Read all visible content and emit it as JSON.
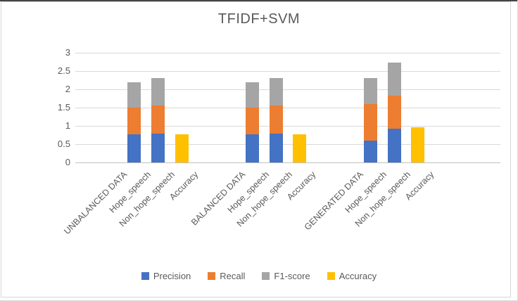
{
  "chart_data": {
    "type": "bar",
    "variant": "stacked-column",
    "title": "TFIDF+SVM",
    "categories": [
      "UNBALANCED DATA",
      "Hope_speech",
      "Non_hope_speech",
      "Accuracy",
      "BALANCED DATA",
      "Hope_speech",
      "Non_hope_speech",
      "Accuracy",
      "GENERATED DATA",
      "Hope_speech",
      "Non_hope_speech",
      "Accuracy"
    ],
    "series": [
      {
        "name": "Precision",
        "color": "#4472C4",
        "values": [
          null,
          0.76,
          0.78,
          null,
          null,
          0.76,
          0.78,
          null,
          null,
          0.6,
          0.92,
          null
        ]
      },
      {
        "name": "Recall",
        "color": "#ED7D31",
        "values": [
          null,
          0.74,
          0.77,
          null,
          null,
          0.74,
          0.77,
          null,
          null,
          1.0,
          0.91,
          null
        ]
      },
      {
        "name": "F1-score",
        "color": "#A5A5A5",
        "values": [
          null,
          0.7,
          0.76,
          null,
          null,
          0.7,
          0.75,
          null,
          null,
          0.7,
          0.9,
          null
        ]
      },
      {
        "name": "Accuracy",
        "color": "#FFC000",
        "values": [
          null,
          null,
          null,
          0.77,
          null,
          null,
          null,
          0.77,
          null,
          null,
          null,
          0.96
        ]
      }
    ],
    "ylim": [
      0,
      3
    ],
    "ytick_labels": [
      "0",
      "0.5",
      "1",
      "1.5",
      "2",
      "2.5",
      "3"
    ],
    "ytick_values": [
      0,
      0.5,
      1,
      1.5,
      2,
      2.5,
      3
    ],
    "grid": true,
    "legend_position": "bottom",
    "legend": [
      "Precision",
      "Recall",
      "F1-score",
      "Accuracy"
    ],
    "category_slots": [
      1,
      2,
      3,
      4,
      6,
      7,
      8,
      9,
      11,
      12,
      13,
      14
    ],
    "slot_count": 18,
    "text_color": "#595959",
    "grid_color": "#D9D9D9",
    "axis_color": "#BFBFBF"
  }
}
